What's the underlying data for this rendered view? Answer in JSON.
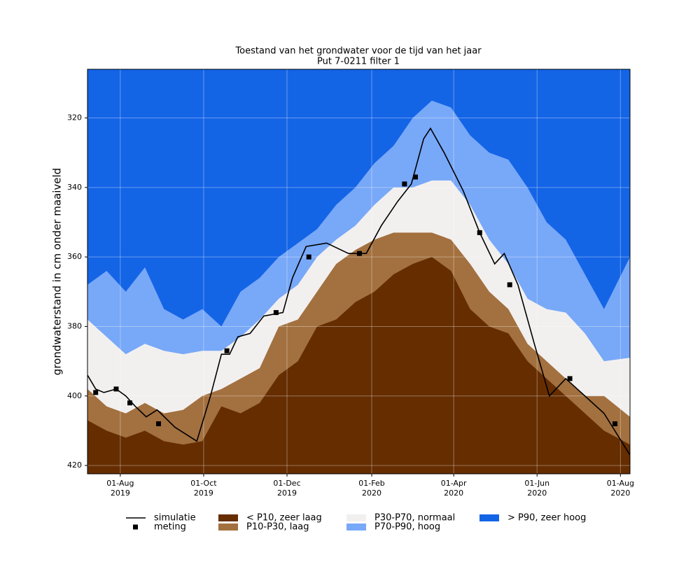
{
  "chart_data": {
    "type": "area",
    "title": "Toestand van het grondwater voor de tijd van het jaar",
    "subtitle": "Put 7-0211 filter 1",
    "ylabel": "grondwaterstand in cm onder maaiveld",
    "xlim": [
      "2019-07-08",
      "2020-08-08"
    ],
    "xticks": [
      {
        "value": "2019-08-01",
        "label": "01-Aug\n2019"
      },
      {
        "value": "2019-10-01",
        "label": "01-Oct\n2019"
      },
      {
        "value": "2019-12-01",
        "label": "01-Dec\n2019"
      },
      {
        "value": "2020-02-01",
        "label": "01-Feb\n2020"
      },
      {
        "value": "2020-04-01",
        "label": "01-Apr\n2020"
      },
      {
        "value": "2020-06-01",
        "label": "01-Jun\n2020"
      },
      {
        "value": "2020-08-01",
        "label": "01-Aug\n2020"
      }
    ],
    "ylim": [
      306,
      422.4
    ],
    "y_inverted": true,
    "yticks": [
      320,
      340,
      360,
      380,
      400,
      420
    ],
    "grid": true,
    "legend": "below",
    "x": [
      "2019-07-08",
      "2019-07-22",
      "2019-08-05",
      "2019-08-19",
      "2019-09-02",
      "2019-09-16",
      "2019-09-30",
      "2019-10-14",
      "2019-10-28",
      "2019-11-11",
      "2019-11-25",
      "2019-12-09",
      "2019-12-23",
      "2020-01-06",
      "2020-01-20",
      "2020-02-03",
      "2020-02-17",
      "2020-03-02",
      "2020-03-16",
      "2020-03-30",
      "2020-04-13",
      "2020-04-27",
      "2020-05-11",
      "2020-05-25",
      "2020-06-08",
      "2020-06-22",
      "2020-07-06",
      "2020-07-20",
      "2020-08-08"
    ],
    "series": [
      {
        "name": "< P10, zeer laag",
        "color": "#652d00",
        "values": [
          407,
          410,
          412,
          410,
          413,
          414,
          413,
          403,
          405,
          402,
          394,
          390,
          380,
          378,
          373,
          370,
          365,
          362,
          360,
          364,
          375,
          380,
          382,
          390,
          395,
          400,
          405,
          410,
          414
        ]
      },
      {
        "name": "P10-P30, laag",
        "color": "#a3703f",
        "values": [
          398,
          403,
          405,
          402,
          405,
          404,
          400,
          398,
          395,
          392,
          380,
          378,
          370,
          362,
          358,
          355,
          353,
          353,
          353,
          355,
          362,
          370,
          375,
          385,
          390,
          395,
          400,
          400,
          406
        ]
      },
      {
        "name": "P30-P70, normaal",
        "color": "#f2f0ef",
        "values": [
          378,
          383,
          388,
          385,
          387,
          388,
          387,
          387,
          383,
          378,
          372,
          368,
          360,
          355,
          351,
          345,
          340,
          340,
          338,
          338,
          345,
          355,
          362,
          372,
          375,
          376,
          382,
          390,
          389
        ]
      },
      {
        "name": "P70-P90, hoog",
        "color": "#78a8f8",
        "values": [
          368,
          364,
          370,
          363,
          375,
          378,
          375,
          380,
          370,
          366,
          360,
          356,
          352,
          345,
          340,
          333,
          328,
          320,
          315,
          317,
          325,
          330,
          332,
          340,
          350,
          355,
          365,
          375,
          360
        ]
      },
      {
        "name": "> P90, zeer hoog",
        "color": "#1464e6"
      }
    ],
    "simulation": {
      "name": "simulatie",
      "color": "#000000",
      "x": [
        "2019-07-08",
        "2019-07-14",
        "2019-07-20",
        "2019-07-29",
        "2019-08-05",
        "2019-08-12",
        "2019-08-20",
        "2019-08-28",
        "2019-09-10",
        "2019-09-26",
        "2019-10-06",
        "2019-10-14",
        "2019-10-20",
        "2019-10-26",
        "2019-11-04",
        "2019-11-14",
        "2019-11-28",
        "2019-12-05",
        "2019-12-15",
        "2019-12-30",
        "2020-01-15",
        "2020-01-28",
        "2020-02-08",
        "2020-02-20",
        "2020-03-01",
        "2020-03-10",
        "2020-03-15",
        "2020-03-25",
        "2020-04-08",
        "2020-04-20",
        "2020-05-01",
        "2020-05-08",
        "2020-05-18",
        "2020-05-30",
        "2020-06-10",
        "2020-06-22",
        "2020-07-06",
        "2020-07-20",
        "2020-08-08"
      ],
      "values": [
        394,
        398,
        399,
        398,
        400,
        403,
        406,
        404,
        409,
        413,
        400,
        388,
        388,
        383,
        382,
        377,
        376,
        366,
        357,
        356,
        359,
        359,
        351,
        344,
        339,
        326,
        323,
        330,
        341,
        353,
        362,
        359,
        368,
        385,
        400,
        395,
        400,
        405,
        417
      ]
    },
    "measurements": {
      "name": "meting",
      "color": "#000000",
      "x": [
        "2019-07-14",
        "2019-07-29",
        "2019-08-08",
        "2019-08-29",
        "2019-10-18",
        "2019-11-23",
        "2019-12-17",
        "2020-01-23",
        "2020-02-25",
        "2020-03-04",
        "2020-04-20",
        "2020-05-12",
        "2020-06-25",
        "2020-07-28"
      ],
      "values": [
        399,
        398,
        402,
        408,
        387,
        376,
        360,
        359,
        339,
        337,
        353,
        368,
        395,
        408
      ]
    }
  }
}
